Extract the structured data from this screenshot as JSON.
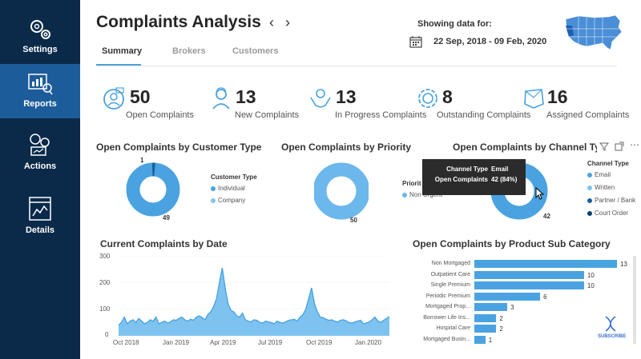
{
  "sidebar": {
    "items": [
      {
        "label": "Settings",
        "icon": "gears-icon"
      },
      {
        "label": "Reports",
        "icon": "report-icon",
        "active": true
      },
      {
        "label": "Actions",
        "icon": "actions-icon"
      },
      {
        "label": "Details",
        "icon": "details-icon"
      }
    ]
  },
  "header": {
    "title": "Complaints Analysis",
    "tabs": [
      "Summary",
      "Brokers",
      "Customers"
    ],
    "showing_label": "Showing data for:",
    "date_range": "22 Sep, 2018 - 09 Feb, 2020"
  },
  "kpis": [
    {
      "value": "50",
      "label": "Open Complaints"
    },
    {
      "value": "13",
      "label": "New Complaints"
    },
    {
      "value": "13",
      "label": "In Progress Complaints"
    },
    {
      "value": "8",
      "label": "Outstanding Complaints"
    },
    {
      "value": "16",
      "label": "Assigned Complaints"
    }
  ],
  "customer_type": {
    "title": "Open Complaints by Customer Type",
    "legend_title": "Customer Type",
    "legend": [
      "Individual",
      "Company"
    ],
    "labels": {
      "small": "1",
      "large": "49"
    }
  },
  "priority": {
    "title": "Open Complaints by Priority",
    "legend_title": "Priorit",
    "legend": [
      "Non Urgent"
    ],
    "labels": {
      "large": "50"
    }
  },
  "channel": {
    "title": "Open Complaints by Channel Typ",
    "legend_title": "Channel Type",
    "legend": [
      "Email",
      "Written",
      "Partner / Bank",
      "Court Order"
    ],
    "labels": {
      "large": "42"
    },
    "tooltip": {
      "k1": "Channel Type",
      "v1": "Email",
      "k2": "Open Complaints",
      "v2": "42 (84%)"
    }
  },
  "colors": {
    "primary": "#4aa3e0",
    "light": "#7ec3ef",
    "dark": "#1a5f9c",
    "sidebar": "#0b2a4a",
    "sidebar_active": "#1d5c9a"
  },
  "chart_data": [
    {
      "type": "area",
      "title": "Current Complaints by Date",
      "y_ticks": [
        "300",
        "200",
        "100",
        "0"
      ],
      "x_ticks": [
        "Oct 2018",
        "Jan 2019",
        "Apr 2019",
        "Jul 2019",
        "Oct 2019",
        "Jan 2020"
      ],
      "ylim": [
        0,
        300
      ],
      "values": [
        40,
        50,
        70,
        45,
        55,
        60,
        50,
        65,
        55,
        45,
        50,
        60,
        55,
        70,
        45,
        50,
        55,
        48,
        52,
        60,
        58,
        65,
        70,
        60,
        55,
        62,
        58,
        70,
        75,
        68,
        60,
        80,
        90,
        110,
        140,
        200,
        255,
        180,
        120,
        95,
        90,
        75,
        70,
        85,
        60,
        55,
        52,
        60,
        58,
        50,
        48,
        55,
        52,
        50,
        45,
        55,
        50,
        48,
        52,
        58,
        60,
        62,
        55,
        70,
        80,
        100,
        140,
        180,
        120,
        90,
        70,
        68,
        62,
        58,
        60,
        55,
        52,
        58,
        60,
        56,
        50,
        48,
        52,
        55,
        58,
        45,
        48,
        52,
        60,
        70,
        55,
        50,
        58,
        65,
        72
      ]
    },
    {
      "type": "bar",
      "title": "Open Complaints by Product Sub Category",
      "categories": [
        "Non Mortgaged",
        "Outpatient Care",
        "Single Premium",
        "Periodic Premium",
        "Mortgaged Prop...",
        "Borrower Life Ins...",
        "Hospital Care",
        "Mortgaged Busin..."
      ],
      "values": [
        13,
        10,
        10,
        6,
        3,
        2,
        2,
        1
      ]
    }
  ],
  "subscribe": "SUBSCRIBE"
}
